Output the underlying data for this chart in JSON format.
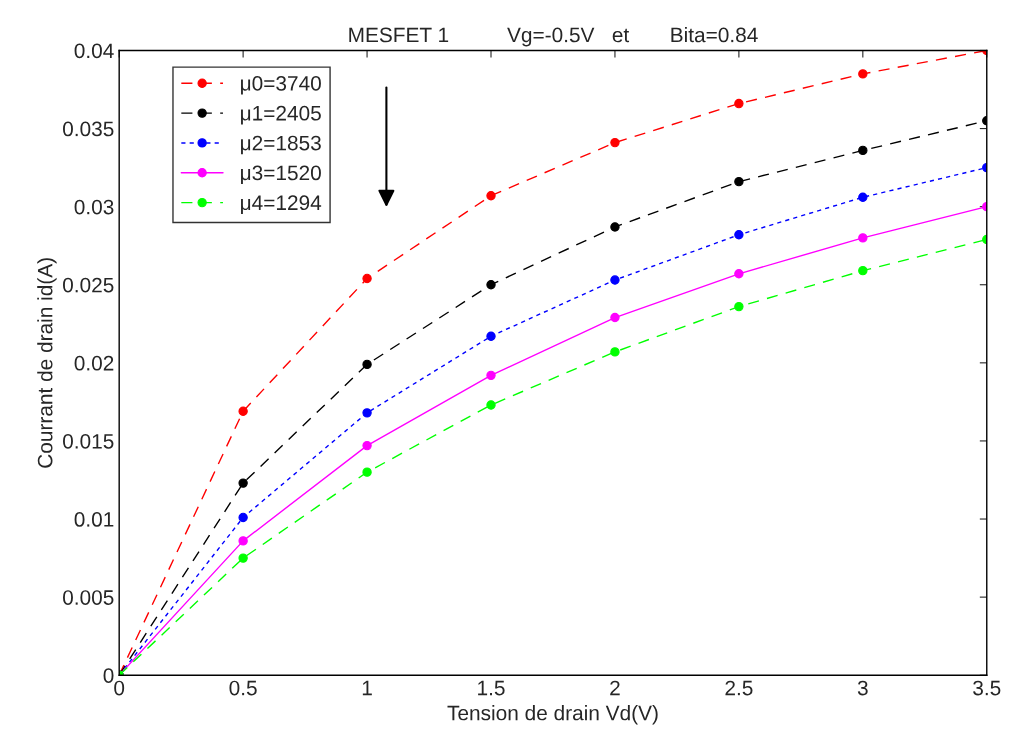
{
  "chart_data": {
    "type": "line",
    "title": "MESFET 1          Vg=-0.5V   et       Bita=0.84",
    "xlabel": "Tension de drain Vd(V)",
    "ylabel": "Courrant de drain id(A)",
    "x": [
      0,
      0.5,
      1,
      1.5,
      2,
      2.5,
      3,
      3.5
    ],
    "series": [
      {
        "name": "μ0=3740",
        "color": "#ff0000",
        "line_style": "dashed",
        "values": [
          0,
          0.0169,
          0.0254,
          0.0307,
          0.0341,
          0.0366,
          0.0385,
          0.04
        ]
      },
      {
        "name": "μ1=2405",
        "color": "#000000",
        "line_style": "dashed",
        "values": [
          0,
          0.0123,
          0.0199,
          0.025,
          0.0287,
          0.0316,
          0.0336,
          0.0355
        ]
      },
      {
        "name": "μ2=1853",
        "color": "#0000ff",
        "line_style": "dotted",
        "values": [
          0,
          0.0101,
          0.0168,
          0.0217,
          0.0253,
          0.0282,
          0.0306,
          0.0325
        ]
      },
      {
        "name": "μ3=1520",
        "color": "#ff00ff",
        "line_style": "solid",
        "values": [
          0,
          0.0086,
          0.0147,
          0.0192,
          0.0229,
          0.0257,
          0.028,
          0.03
        ]
      },
      {
        "name": "μ4=1294",
        "color": "#00ff00",
        "line_style": "dashed",
        "values": [
          0,
          0.0075,
          0.013,
          0.0173,
          0.0207,
          0.0236,
          0.0259,
          0.0279
        ]
      }
    ],
    "xlim": [
      0,
      3.5
    ],
    "ylim": [
      0,
      0.04
    ],
    "xticks": [
      0,
      0.5,
      1,
      1.5,
      2,
      2.5,
      3,
      3.5
    ],
    "yticks": [
      0,
      0.005,
      0.01,
      0.015,
      0.02,
      0.025,
      0.03,
      0.035,
      0.04
    ],
    "grid": false,
    "legend": "top left",
    "marker": "circle"
  }
}
